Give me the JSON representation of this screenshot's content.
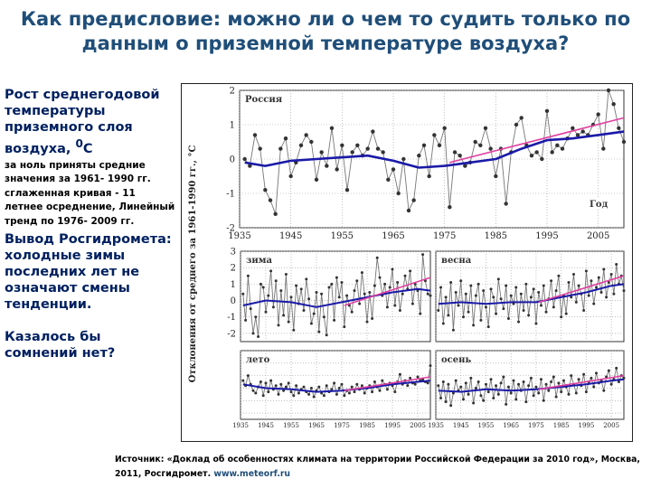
{
  "title": "Как предисловие: можно ли о чем то судить только по данным о приземной температуре воздуха?",
  "left_panel": {
    "heading": "Рост среднегодовой температуры приземного слоя воздуха,",
    "unit_sup": "0",
    "unit_letter": "С",
    "note": "за ноль приняты средние значения за 1961- 1990 гг. сглаженная кривая - 11 летнее осреднение, Линейный тренд по 1976- 2009 гг.",
    "conclusion": "Вывод Росгидромета: холодные зимы последних лет не означают смены тенденции.",
    "question": "Казалось бы сомнений нет?"
  },
  "source": {
    "text": "Источник: «Доклад об особенностях климата на территории Российской Федерации за 2010 год», Москва, 2011, Росгидромет.",
    "url": "www.meteorf.ru"
  },
  "colors": {
    "title": "#1f4e79",
    "heading": "#002060",
    "anomaly_series": "#333333",
    "smoothed_curve": "#1a1aa8",
    "trend_line": "#e040a0"
  },
  "chart_data": [
    {
      "type": "line",
      "panel_label": "Россия",
      "xlabel": "Год",
      "ylabel": "Отклонения от среднего за 1961-1990 гг., °С",
      "ylim": [
        -2,
        2
      ],
      "yticks": [
        "-2",
        "-1",
        "0",
        "1",
        "2"
      ],
      "xlim": [
        1935,
        2010
      ],
      "xticks": [
        "1935",
        "1945",
        "1955",
        "1965",
        "1975",
        "1985",
        "1995",
        "2005"
      ],
      "series": [
        {
          "x": [
            1936,
            1937,
            1938,
            1939,
            1940,
            1941,
            1942,
            1943,
            1944,
            1945,
            1946,
            1947,
            1948,
            1949,
            1950,
            1951,
            1952,
            1953,
            1954,
            1955,
            1956,
            1957,
            1958,
            1959,
            1960,
            1961,
            1962,
            1963,
            1964,
            1965,
            1966,
            1967,
            1968,
            1969,
            1970,
            1971,
            1972,
            1973,
            1974,
            1975,
            1976,
            1977,
            1978,
            1979,
            1980,
            1981,
            1982,
            1983,
            1984,
            1985,
            1986,
            1987,
            1988,
            1989,
            1990,
            1991,
            1992,
            1993,
            1994,
            1995,
            1996,
            1997,
            1998,
            1999,
            2000,
            2001,
            2002,
            2003,
            2004,
            2005,
            2006,
            2007,
            2008,
            2009,
            2010
          ],
          "values": [
            0.0,
            -0.2,
            0.7,
            0.3,
            -0.9,
            -1.2,
            -1.6,
            0.3,
            0.6,
            -0.5,
            -0.1,
            0.4,
            0.7,
            0.5,
            -0.6,
            0.2,
            -0.2,
            0.9,
            -0.3,
            0.4,
            -0.9,
            0.2,
            0.4,
            0.1,
            0.3,
            0.8,
            0.3,
            0.2,
            -0.6,
            -0.3,
            -1.0,
            0.0,
            -1.5,
            -1.2,
            0.1,
            0.4,
            -0.5,
            0.7,
            0.4,
            0.9,
            -1.4,
            0.2,
            0.1,
            -0.2,
            -0.1,
            0.5,
            0.4,
            0.9,
            0.3,
            -0.5,
            0.3,
            -1.3,
            0.2,
            1.0,
            1.2,
            0.4,
            0.1,
            0.2,
            0.0,
            1.4,
            0.2,
            0.4,
            0.3,
            0.6,
            0.9,
            0.7,
            0.8,
            0.7,
            1.0,
            1.3,
            0.3,
            2.0,
            1.6,
            0.9,
            0.5
          ]
        },
        {
          "x": [
            1936,
            1940,
            1945,
            1950,
            1955,
            1960,
            1965,
            1970,
            1975,
            1980,
            1985,
            1990,
            1995,
            2000,
            2005,
            2010
          ],
          "values": [
            -0.1,
            -0.2,
            -0.05,
            0.0,
            0.05,
            0.1,
            -0.05,
            -0.25,
            -0.2,
            -0.1,
            0.0,
            0.3,
            0.55,
            0.6,
            0.7,
            0.8
          ]
        },
        {
          "x": [
            1976,
            2010
          ],
          "values": [
            -0.1,
            1.2
          ]
        }
      ]
    },
    {
      "type": "line",
      "panel_label": "зима",
      "ylim": [
        -2.5,
        3
      ],
      "yticks": [
        "-2",
        "-1",
        "0",
        "1",
        "2",
        "3"
      ],
      "xlim": [
        1935,
        2010
      ],
      "series": [
        {
          "x": [
            1936,
            1937,
            1938,
            1939,
            1940,
            1941,
            1942,
            1943,
            1944,
            1945,
            1946,
            1947,
            1948,
            1949,
            1950,
            1951,
            1952,
            1953,
            1954,
            1955,
            1956,
            1957,
            1958,
            1959,
            1960,
            1961,
            1962,
            1963,
            1964,
            1965,
            1966,
            1967,
            1968,
            1969,
            1970,
            1971,
            1972,
            1973,
            1974,
            1975,
            1976,
            1977,
            1978,
            1979,
            1980,
            1981,
            1982,
            1983,
            1984,
            1985,
            1986,
            1987,
            1988,
            1989,
            1990,
            1991,
            1992,
            1993,
            1994,
            1995,
            1996,
            1997,
            1998,
            1999,
            2000,
            2001,
            2002,
            2003,
            2004,
            2005,
            2006,
            2007,
            2008,
            2009,
            2010
          ],
          "values": [
            0.4,
            -1.2,
            1.5,
            -0.5,
            -2.0,
            -1.0,
            -2.2,
            1.0,
            0.8,
            -0.7,
            0.3,
            1.8,
            -0.4,
            1.2,
            -1.5,
            0.6,
            -0.9,
            1.6,
            -1.3,
            0.2,
            -1.8,
            0.9,
            -0.2,
            0.7,
            -0.6,
            1.3,
            0.1,
            -1.4,
            -0.8,
            0.5,
            -1.9,
            0.4,
            -1.0,
            -2.1,
            0.8,
            1.0,
            -1.2,
            1.4,
            0.2,
            1.1,
            -1.6,
            0.3,
            -0.3,
            -0.7,
            0.6,
            1.2,
            -0.2,
            1.7,
            0.4,
            -1.3,
            0.5,
            -1.1,
            0.9,
            2.6,
            1.4,
            0.3,
            1.0,
            -0.4,
            0.8,
            1.9,
            -0.3,
            1.1,
            -0.6,
            0.4,
            1.5,
            0.7,
            1.8,
            -0.2,
            1.0,
            0.6,
            -0.8,
            2.8,
            1.2,
            0.4,
            0.3
          ]
        },
        {
          "x": [
            1936,
            1945,
            1955,
            1965,
            1975,
            1985,
            1995,
            2005,
            2010
          ],
          "values": [
            -0.3,
            0.0,
            -0.1,
            -0.4,
            -0.1,
            0.2,
            0.5,
            0.7,
            0.6
          ]
        },
        {
          "x": [
            1976,
            2010
          ],
          "values": [
            -0.3,
            1.4
          ]
        }
      ]
    },
    {
      "type": "line",
      "panel_label": "весна",
      "ylim": [
        -2.5,
        3
      ],
      "xlim": [
        1935,
        2010
      ],
      "series": [
        {
          "x": [
            1936,
            1937,
            1938,
            1939,
            1940,
            1941,
            1942,
            1943,
            1944,
            1945,
            1946,
            1947,
            1948,
            1949,
            1950,
            1951,
            1952,
            1953,
            1954,
            1955,
            1956,
            1957,
            1958,
            1959,
            1960,
            1961,
            1962,
            1963,
            1964,
            1965,
            1966,
            1967,
            1968,
            1969,
            1970,
            1971,
            1972,
            1973,
            1974,
            1975,
            1976,
            1977,
            1978,
            1979,
            1980,
            1981,
            1982,
            1983,
            1984,
            1985,
            1986,
            1987,
            1988,
            1989,
            1990,
            1991,
            1992,
            1993,
            1994,
            1995,
            1996,
            1997,
            1998,
            1999,
            2000,
            2001,
            2002,
            2003,
            2004,
            2005,
            2006,
            2007,
            2008,
            2009,
            2010
          ],
          "values": [
            -0.6,
            0.8,
            -1.4,
            0.2,
            -0.9,
            1.1,
            -1.8,
            0.5,
            -0.3,
            1.2,
            -1.0,
            0.4,
            -0.7,
            0.9,
            -1.5,
            0.3,
            1.0,
            -1.2,
            0.6,
            -0.4,
            -1.6,
            0.7,
            0.2,
            -0.8,
            1.3,
            0.1,
            -0.5,
            0.9,
            -1.1,
            0.3,
            -0.2,
            0.8,
            -1.3,
            0.4,
            -0.6,
            1.0,
            -0.9,
            0.2,
            0.7,
            -1.4,
            0.5,
            -0.3,
            0.9,
            -0.7,
            0.1,
            1.2,
            -0.4,
            0.6,
            1.5,
            -1.0,
            0.3,
            -0.8,
            1.1,
            0.2,
            1.6,
            -0.1,
            0.9,
            0.4,
            -0.6,
            1.8,
            0.3,
            1.2,
            -0.2,
            0.8,
            1.4,
            0.5,
            1.9,
            0.2,
            1.1,
            1.6,
            0.4,
            2.2,
            1.0,
            1.5,
            0.6
          ]
        },
        {
          "x": [
            1936,
            1945,
            1955,
            1965,
            1975,
            1985,
            1995,
            2005,
            2010
          ],
          "values": [
            -0.2,
            -0.1,
            -0.2,
            -0.1,
            -0.1,
            0.2,
            0.5,
            0.9,
            1.0
          ]
        },
        {
          "x": [
            1976,
            2010
          ],
          "values": [
            -0.1,
            1.5
          ]
        }
      ]
    },
    {
      "type": "line",
      "panel_label": "лето",
      "ylim": [
        -2.5,
        3
      ],
      "xlim": [
        1935,
        2010
      ],
      "xticks": [
        "1935",
        "1945",
        "1955",
        "1965",
        "1975",
        "1985",
        "1995",
        "2005"
      ],
      "series": [
        {
          "x": [
            1936,
            1937,
            1938,
            1939,
            1940,
            1941,
            1942,
            1943,
            1944,
            1945,
            1946,
            1947,
            1948,
            1949,
            1950,
            1951,
            1952,
            1953,
            1954,
            1955,
            1956,
            1957,
            1958,
            1959,
            1960,
            1961,
            1962,
            1963,
            1964,
            1965,
            1966,
            1967,
            1968,
            1969,
            1970,
            1971,
            1972,
            1973,
            1974,
            1975,
            1976,
            1977,
            1978,
            1979,
            1980,
            1981,
            1982,
            1983,
            1984,
            1985,
            1986,
            1987,
            1988,
            1989,
            1990,
            1991,
            1992,
            1993,
            1994,
            1995,
            1996,
            1997,
            1998,
            1999,
            2000,
            2001,
            2002,
            2003,
            2004,
            2005,
            2006,
            2007,
            2008,
            2009,
            2010
          ],
          "values": [
            0.6,
            0.2,
            1.0,
            0.3,
            -0.2,
            -0.4,
            0.1,
            0.5,
            -0.6,
            0.4,
            -0.3,
            0.6,
            -0.1,
            0.2,
            -0.5,
            0.3,
            -0.2,
            0.1,
            0.4,
            -0.3,
            -0.6,
            0.2,
            -0.4,
            -0.1,
            0.1,
            -0.3,
            -0.5,
            0.0,
            -0.7,
            -0.2,
            0.1,
            -0.4,
            -0.6,
            0.2,
            -0.3,
            -0.1,
            0.4,
            -0.5,
            0.0,
            0.3,
            -0.6,
            -0.2,
            -0.4,
            0.1,
            -0.3,
            0.3,
            -0.1,
            0.2,
            -0.4,
            0.0,
            0.2,
            -0.3,
            0.5,
            0.1,
            -0.2,
            0.6,
            0.3,
            -0.1,
            0.4,
            0.2,
            -0.3,
            0.5,
            1.1,
            0.3,
            0.6,
            0.2,
            0.8,
            0.4,
            0.3,
            0.9,
            0.6,
            0.7,
            0.5,
            0.4,
            1.8
          ]
        },
        {
          "x": [
            1936,
            1945,
            1955,
            1965,
            1975,
            1985,
            1995,
            2005,
            2010
          ],
          "values": [
            0.3,
            0.0,
            -0.1,
            -0.3,
            -0.2,
            0.0,
            0.3,
            0.5,
            0.6
          ]
        },
        {
          "x": [
            1976,
            2010
          ],
          "values": [
            -0.2,
            0.9
          ]
        }
      ]
    },
    {
      "type": "line",
      "panel_label": "осень",
      "ylim": [
        -2.5,
        3
      ],
      "xlim": [
        1935,
        2010
      ],
      "xticks": [
        "1935",
        "1945",
        "1955",
        "1965",
        "1975",
        "1985",
        "1995",
        "2005"
      ],
      "series": [
        {
          "x": [
            1936,
            1937,
            1938,
            1939,
            1940,
            1941,
            1942,
            1943,
            1944,
            1945,
            1946,
            1947,
            1948,
            1949,
            1950,
            1951,
            1952,
            1953,
            1954,
            1955,
            1956,
            1957,
            1958,
            1959,
            1960,
            1961,
            1962,
            1963,
            1964,
            1965,
            1966,
            1967,
            1968,
            1969,
            1970,
            1971,
            1972,
            1973,
            1974,
            1975,
            1976,
            1977,
            1978,
            1979,
            1980,
            1981,
            1982,
            1983,
            1984,
            1985,
            1986,
            1987,
            1988,
            1989,
            1990,
            1991,
            1992,
            1993,
            1994,
            1995,
            1996,
            1997,
            1998,
            1999,
            2000,
            2001,
            2002,
            2003,
            2004,
            2005,
            2006,
            2007,
            2008,
            2009,
            2010
          ],
          "values": [
            0.2,
            -0.8,
            0.5,
            -1.1,
            0.3,
            -1.4,
            -0.4,
            0.6,
            -0.2,
            0.1,
            -0.9,
            0.4,
            -0.5,
            0.8,
            -1.2,
            0.0,
            0.5,
            -0.6,
            -1.0,
            0.3,
            -0.3,
            0.7,
            -0.8,
            0.2,
            -0.5,
            0.4,
            0.9,
            -1.3,
            0.1,
            -0.4,
            0.6,
            -0.9,
            0.3,
            -0.2,
            0.5,
            -1.1,
            0.2,
            0.8,
            -0.6,
            0.1,
            -0.4,
            0.7,
            -1.0,
            0.3,
            -0.2,
            0.5,
            0.9,
            -0.7,
            0.4,
            -0.3,
            0.6,
            0.1,
            -0.5,
            1.0,
            0.3,
            -0.4,
            0.7,
            0.2,
            1.1,
            -0.3,
            0.5,
            0.8,
            0.1,
            1.2,
            0.4,
            0.6,
            -0.2,
            0.9,
            1.4,
            0.3,
            0.7,
            1.6,
            0.5,
            1.0,
            0.8
          ]
        },
        {
          "x": [
            1936,
            1945,
            1955,
            1965,
            1975,
            1985,
            1995,
            2005,
            2010
          ],
          "values": [
            -0.2,
            -0.3,
            -0.1,
            -0.2,
            -0.1,
            0.1,
            0.3,
            0.6,
            0.7
          ]
        },
        {
          "x": [
            1976,
            2010
          ],
          "values": [
            -0.1,
            1.0
          ]
        }
      ]
    }
  ]
}
